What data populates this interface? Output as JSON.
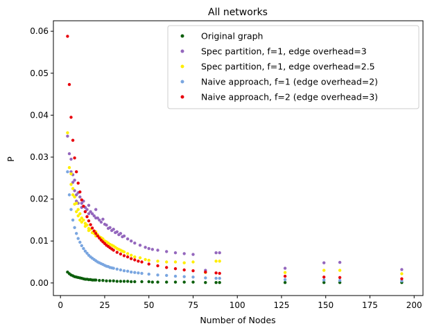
{
  "chart_data": {
    "type": "scatter",
    "title": "All networks",
    "xlabel": "Number of Nodes",
    "ylabel": "P",
    "xlim": [
      -4,
      205
    ],
    "ylim": [
      -0.003,
      0.0625
    ],
    "xticks": [
      "0",
      "25",
      "50",
      "75",
      "100",
      "125",
      "150",
      "175",
      "200"
    ],
    "xtick_values": [
      0,
      25,
      50,
      75,
      100,
      125,
      150,
      175,
      200
    ],
    "yticks": [
      "0.00",
      "0.01",
      "0.02",
      "0.03",
      "0.04",
      "0.05",
      "0.06"
    ],
    "ytick_values": [
      0,
      0.01,
      0.02,
      0.03,
      0.04,
      0.05,
      0.06
    ],
    "grid": false,
    "legend_position": "top-right",
    "series": [
      {
        "name": "Original graph",
        "color": "#0b5e0b",
        "x": [
          4,
          5,
          6,
          7,
          8,
          9,
          10,
          11,
          12,
          13,
          14,
          15,
          16,
          17,
          18,
          19,
          20,
          22,
          24,
          26,
          28,
          30,
          32,
          34,
          36,
          38,
          40,
          42,
          46,
          50,
          52,
          55,
          60,
          65,
          70,
          75,
          82,
          88,
          90,
          127,
          149,
          158,
          193
        ],
        "y": [
          0.0026,
          0.0022,
          0.0019,
          0.0017,
          0.0015,
          0.0014,
          0.0013,
          0.0012,
          0.0011,
          0.001,
          0.0009,
          0.0009,
          0.0008,
          0.0008,
          0.0007,
          0.0007,
          0.0007,
          0.0006,
          0.0006,
          0.0005,
          0.0005,
          0.0005,
          0.0004,
          0.0004,
          0.0004,
          0.0004,
          0.0003,
          0.0003,
          0.0003,
          0.0003,
          0.0002,
          0.0002,
          0.0002,
          0.0002,
          0.0002,
          0.0002,
          0.0001,
          0.0001,
          0.0001,
          0.0001,
          0.0001,
          0.0001,
          0.0001
        ]
      },
      {
        "name": "Spec partition, f=1, edge overhead=3",
        "color": "#9467bd",
        "x": [
          4,
          5,
          6,
          6,
          7,
          7,
          8,
          8,
          9,
          9,
          10,
          10,
          11,
          12,
          12,
          13,
          14,
          14,
          15,
          16,
          16,
          17,
          18,
          19,
          20,
          20,
          21,
          22,
          23,
          24,
          25,
          26,
          27,
          28,
          29,
          30,
          31,
          32,
          33,
          34,
          35,
          36,
          38,
          40,
          42,
          45,
          48,
          50,
          52,
          55,
          60,
          65,
          70,
          75,
          82,
          88,
          90,
          127,
          149,
          158,
          193
        ],
        "y": [
          0.035,
          0.0308,
          0.0295,
          0.0265,
          0.0258,
          0.024,
          0.0245,
          0.022,
          0.021,
          0.0195,
          0.0215,
          0.019,
          0.0205,
          0.019,
          0.018,
          0.0195,
          0.018,
          0.017,
          0.0175,
          0.0185,
          0.0165,
          0.017,
          0.0165,
          0.016,
          0.0175,
          0.0155,
          0.0155,
          0.015,
          0.0145,
          0.0152,
          0.014,
          0.0138,
          0.013,
          0.0132,
          0.0125,
          0.0128,
          0.012,
          0.0122,
          0.0115,
          0.0118,
          0.011,
          0.0112,
          0.0105,
          0.01,
          0.0095,
          0.009,
          0.0085,
          0.0082,
          0.008,
          0.0078,
          0.0075,
          0.0072,
          0.007,
          0.0068,
          0.003,
          0.0072,
          0.0072,
          0.0035,
          0.0048,
          0.0049,
          0.0032
        ]
      },
      {
        "name": "Spec partition, f=1, edge overhead=2.5",
        "color": "#ffee00",
        "x": [
          4,
          5,
          6,
          6,
          7,
          7,
          8,
          8,
          9,
          9,
          10,
          10,
          11,
          11,
          12,
          12,
          13,
          14,
          14,
          15,
          16,
          16,
          17,
          18,
          19,
          20,
          20,
          21,
          22,
          23,
          24,
          25,
          26,
          27,
          28,
          29,
          30,
          31,
          32,
          33,
          34,
          35,
          36,
          38,
          40,
          42,
          45,
          48,
          50,
          55,
          60,
          65,
          70,
          75,
          82,
          88,
          90,
          127,
          149,
          158,
          193
        ],
        "y": [
          0.0358,
          0.0275,
          0.026,
          0.0235,
          0.0225,
          0.021,
          0.0205,
          0.0188,
          0.019,
          0.017,
          0.0175,
          0.016,
          0.0165,
          0.015,
          0.0155,
          0.0145,
          0.015,
          0.0142,
          0.0135,
          0.0138,
          0.013,
          0.0125,
          0.0128,
          0.012,
          0.0118,
          0.0122,
          0.0112,
          0.0115,
          0.011,
          0.0108,
          0.0105,
          0.01,
          0.0098,
          0.0095,
          0.0092,
          0.009,
          0.0088,
          0.0085,
          0.0082,
          0.008,
          0.0078,
          0.0076,
          0.0074,
          0.007,
          0.0066,
          0.0062,
          0.006,
          0.0056,
          0.0054,
          0.0052,
          0.005,
          0.005,
          0.0048,
          0.005,
          0.0025,
          0.0052,
          0.0052,
          0.0025,
          0.003,
          0.003,
          0.0022
        ]
      },
      {
        "name": "Naive approach, f=1 (edge overhead=2)",
        "color": "#7aa6e0",
        "x": [
          4,
          5,
          6,
          7,
          8,
          9,
          10,
          11,
          12,
          13,
          14,
          15,
          16,
          17,
          18,
          19,
          20,
          21,
          22,
          23,
          24,
          25,
          26,
          27,
          28,
          29,
          30,
          32,
          34,
          36,
          38,
          40,
          42,
          44,
          46,
          50,
          55,
          60,
          65,
          70,
          75,
          82,
          88,
          90,
          127,
          149,
          158,
          193
        ],
        "y": [
          0.0265,
          0.021,
          0.0175,
          0.015,
          0.0132,
          0.0118,
          0.0106,
          0.0097,
          0.0089,
          0.0082,
          0.0076,
          0.0071,
          0.0066,
          0.0062,
          0.0059,
          0.0056,
          0.0053,
          0.005,
          0.0048,
          0.0046,
          0.0044,
          0.0042,
          0.004,
          0.0039,
          0.0037,
          0.0036,
          0.0035,
          0.0033,
          0.0031,
          0.0029,
          0.0028,
          0.0026,
          0.0025,
          0.0024,
          0.0023,
          0.0021,
          0.0019,
          0.0018,
          0.0016,
          0.0015,
          0.0014,
          0.0012,
          0.0011,
          0.0011,
          0.0008,
          0.0007,
          0.0006,
          0.0005
        ]
      },
      {
        "name": "Naive approach, f=2 (edge overhead=3)",
        "color": "#e8000b",
        "x": [
          4,
          5,
          6,
          7,
          8,
          9,
          10,
          11,
          12,
          13,
          14,
          15,
          16,
          17,
          18,
          19,
          20,
          21,
          22,
          23,
          24,
          25,
          26,
          27,
          28,
          29,
          30,
          32,
          34,
          36,
          38,
          40,
          42,
          44,
          46,
          50,
          55,
          60,
          65,
          70,
          75,
          82,
          88,
          90,
          127,
          149,
          158,
          193
        ],
        "y": [
          0.0588,
          0.0473,
          0.0395,
          0.034,
          0.0298,
          0.0265,
          0.0238,
          0.0217,
          0.0198,
          0.0183,
          0.017,
          0.0158,
          0.0148,
          0.0139,
          0.0131,
          0.0124,
          0.0118,
          0.0112,
          0.0107,
          0.0102,
          0.0098,
          0.0094,
          0.009,
          0.0087,
          0.0084,
          0.0081,
          0.0078,
          0.0073,
          0.0069,
          0.0065,
          0.0062,
          0.0058,
          0.0055,
          0.0052,
          0.005,
          0.0045,
          0.0041,
          0.0037,
          0.0034,
          0.0031,
          0.0029,
          0.0026,
          0.0024,
          0.0023,
          0.0016,
          0.0014,
          0.0013,
          0.001
        ]
      }
    ]
  }
}
